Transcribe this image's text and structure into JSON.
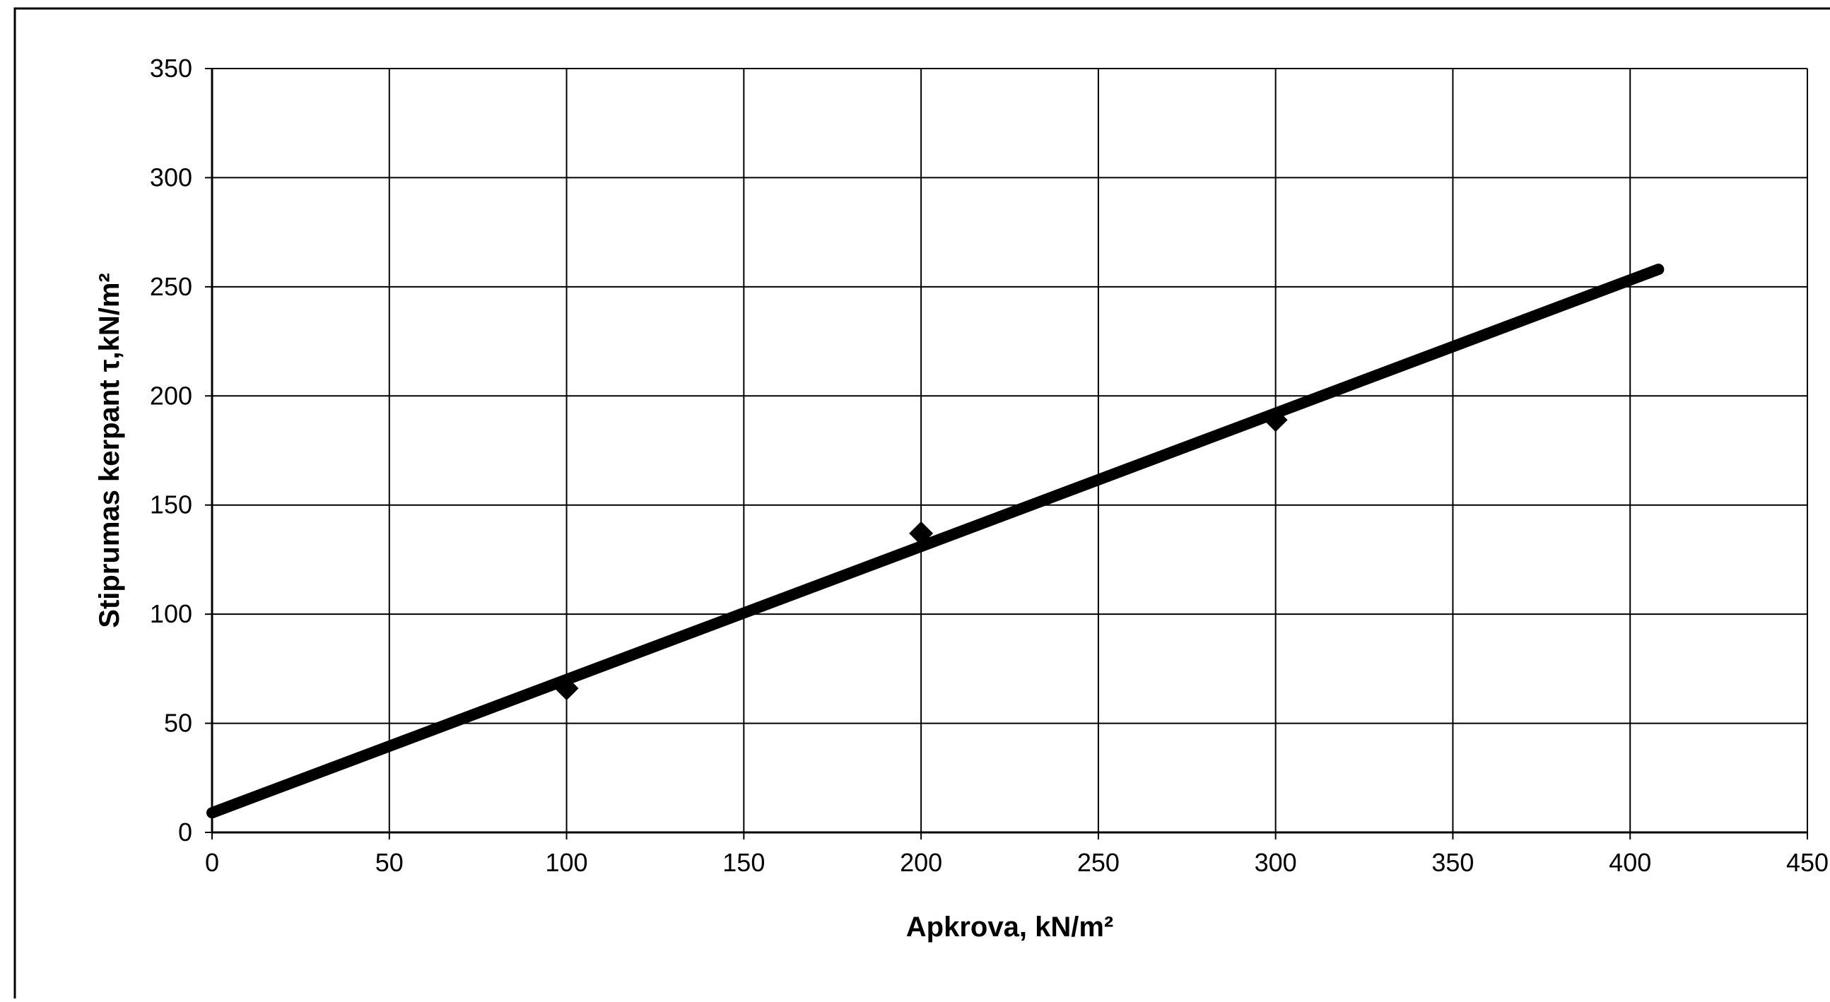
{
  "chart_data": {
    "type": "scatter",
    "title": "",
    "xlabel": "Apkrova, kN/m²",
    "ylabel": "Stiprumas kerpant τ,kN/m²",
    "xlim": [
      0,
      450
    ],
    "ylim": [
      0,
      350
    ],
    "x_ticks": [
      0,
      50,
      100,
      150,
      200,
      250,
      300,
      350,
      400,
      450
    ],
    "y_ticks": [
      0,
      50,
      100,
      150,
      200,
      250,
      300,
      350
    ],
    "x_tick_labels": [
      "0",
      "50",
      "100",
      "150",
      "200",
      "250",
      "300",
      "350",
      "400",
      "450"
    ],
    "y_tick_labels": [
      "0",
      "50",
      "100",
      "150",
      "200",
      "250",
      "300",
      "350"
    ],
    "grid": true,
    "legend": "none",
    "series": [
      {
        "type": "scatter",
        "marker": "diamond",
        "color": "#000000",
        "x": [
          100,
          200,
          300
        ],
        "y": [
          66,
          137,
          189
        ]
      },
      {
        "type": "trendline",
        "color": "#000000",
        "x": [
          0,
          408
        ],
        "y": [
          9,
          258
        ]
      }
    ]
  }
}
